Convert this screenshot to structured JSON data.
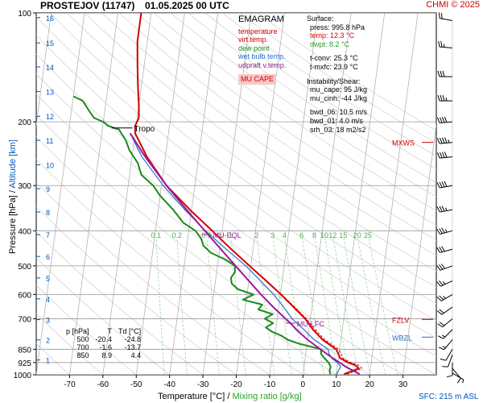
{
  "header": {
    "station": "PROSTEJOV (11747)",
    "datetime": "01.05.2025 00 UTC",
    "credit": "CHMI © 2025"
  },
  "axes": {
    "ylabel_pressure": "Pressure [hPa]",
    "ylabel_sep": " / ",
    "ylabel_altitude": "Altitude [km]",
    "xlabel_temp": "Temperature [°C]",
    "xlabel_sep": " / ",
    "xlabel_mix": "Mixing ratio [g/kg]",
    "sfc_note": "SFC: 215 m ASL"
  },
  "legend": {
    "title": "EMAGRAM",
    "items": [
      {
        "label": "temperature",
        "color": "#d40000"
      },
      {
        "label": "virt.temp.",
        "color": "#d40000"
      },
      {
        "label": "dew point",
        "color": "#1a8a1a"
      },
      {
        "label": "wet bulb temp.",
        "color": "#2b6fc7"
      },
      {
        "label": "udpraft v.temp.",
        "color": "#8b1a8b"
      }
    ],
    "cape_box": "MU CAPE"
  },
  "info": {
    "surface_title": "Surface:",
    "press": "press: 995.8 hPa",
    "temp": "temp: 12.3 °C",
    "dwpt": "dwpt: 8.2 °C",
    "tconv": "t-conv: 25.3 °C",
    "tmxfc": "t-mxfc: 23.9 °C",
    "instab_title": "Instability/Shear:",
    "mu_cape": "mu_cape: 95 J/kg",
    "mu_cinh": "mu_cinh: -44 J/kg",
    "bwd_06": "bwd_06: 10.5 m/s",
    "bwd_01": "bwd_01: 4.0 m/s",
    "srh_03": "srh_03: 18 m2/s2"
  },
  "ptable": {
    "headers": [
      "p [hPa]",
      "T",
      "Td [°C]"
    ],
    "rows": [
      [
        "500",
        "-20.4",
        "-24.8"
      ],
      [
        "700",
        "-1.6",
        "-13.7"
      ],
      [
        "850",
        "8.9",
        "4.4"
      ]
    ]
  },
  "colors": {
    "temperature": "#d40000",
    "dewpoint": "#1a8a1a",
    "wetbulb": "#2b6fc7",
    "parcel": "#9b1a9b",
    "isobar": "#999999",
    "isotherm": "#aaaaaa",
    "mixing": "#9ad89a",
    "altitude": "#0057b8",
    "label_red": "#d00000"
  },
  "chart_data": {
    "type": "line",
    "y_scale": "log",
    "ylim": [
      1000,
      100
    ],
    "xlim": [
      -80,
      40
    ],
    "x_ticks": [
      -70,
      -60,
      -50,
      -40,
      -30,
      -20,
      -10,
      0,
      10,
      20,
      30
    ],
    "y_ticks": [
      100,
      200,
      300,
      400,
      500,
      600,
      700,
      850,
      925,
      1000
    ],
    "altitude_ticks_km": [
      {
        "label": "1",
        "p": 910
      },
      {
        "label": "2",
        "p": 801
      },
      {
        "label": "3",
        "p": 704
      },
      {
        "label": "4",
        "p": 617
      },
      {
        "label": "5",
        "p": 540
      },
      {
        "label": "6",
        "p": 471
      },
      {
        "label": "7",
        "p": 410
      },
      {
        "label": "8",
        "p": 355
      },
      {
        "label": "9",
        "p": 306
      },
      {
        "label": "10",
        "p": 263
      },
      {
        "label": "11",
        "p": 225
      },
      {
        "label": "12",
        "p": 193
      },
      {
        "label": "13",
        "p": 165
      },
      {
        "label": "14",
        "p": 141
      },
      {
        "label": "15",
        "p": 121
      },
      {
        "label": "16",
        "p": 103
      }
    ],
    "mixing_ratio_labels": [
      "0.1",
      "0.2",
      "0.5",
      "1",
      "2",
      "3",
      "4",
      "6",
      "8",
      "10",
      "12",
      "15",
      "20",
      "25"
    ],
    "series": [
      {
        "name": "temperature",
        "key": "temperature",
        "points": [
          [
            996,
            12.3
          ],
          [
            975,
            14.7
          ],
          [
            960,
            16.5
          ],
          [
            940,
            15.2
          ],
          [
            925,
            13.0
          ],
          [
            900,
            10.5
          ],
          [
            875,
            9.8
          ],
          [
            850,
            8.9
          ],
          [
            800,
            4.5
          ],
          [
            750,
            1.2
          ],
          [
            700,
            -1.6
          ],
          [
            650,
            -5.5
          ],
          [
            600,
            -9.8
          ],
          [
            550,
            -14.8
          ],
          [
            500,
            -20.4
          ],
          [
            450,
            -26.5
          ],
          [
            400,
            -33.0
          ],
          [
            350,
            -40.5
          ],
          [
            300,
            -48.5
          ],
          [
            250,
            -55.5
          ],
          [
            215,
            -60.0
          ],
          [
            205,
            -60.3
          ],
          [
            195,
            -59.5
          ],
          [
            180,
            -60.0
          ],
          [
            160,
            -61.0
          ],
          [
            140,
            -62.0
          ],
          [
            120,
            -63.0
          ],
          [
            100,
            -63.0
          ]
        ]
      },
      {
        "name": "virt.temp.",
        "key": "virttemp",
        "points": [
          [
            996,
            13.2
          ],
          [
            975,
            15.7
          ],
          [
            960,
            17.5
          ],
          [
            940,
            16.1
          ],
          [
            925,
            13.9
          ],
          [
            900,
            11.4
          ],
          [
            875,
            10.6
          ],
          [
            850,
            9.7
          ],
          [
            800,
            5.2
          ],
          [
            750,
            1.8
          ],
          [
            700,
            -1.2
          ],
          [
            650,
            -5.2
          ],
          [
            600,
            -9.6
          ],
          [
            550,
            -14.6
          ],
          [
            500,
            -20.3
          ],
          [
            450,
            -26.4
          ],
          [
            400,
            -33.0
          ],
          [
            350,
            -40.5
          ],
          [
            300,
            -48.5
          ],
          [
            250,
            -55.5
          ],
          [
            215,
            -60.0
          ]
        ]
      },
      {
        "name": "dew point",
        "key": "dewpoint",
        "points": [
          [
            996,
            8.2
          ],
          [
            975,
            7.8
          ],
          [
            950,
            8.0
          ],
          [
            925,
            7.2
          ],
          [
            900,
            5.8
          ],
          [
            875,
            4.6
          ],
          [
            850,
            4.4
          ],
          [
            820,
            -2.5
          ],
          [
            800,
            -6.0
          ],
          [
            780,
            -8.0
          ],
          [
            760,
            -11.0
          ],
          [
            740,
            -13.0
          ],
          [
            720,
            -11.0
          ],
          [
            700,
            -13.7
          ],
          [
            680,
            -11.5
          ],
          [
            660,
            -16.0
          ],
          [
            640,
            -15.0
          ],
          [
            620,
            -21.0
          ],
          [
            600,
            -18.0
          ],
          [
            580,
            -23.0
          ],
          [
            560,
            -25.0
          ],
          [
            540,
            -25.5
          ],
          [
            520,
            -24.5
          ],
          [
            500,
            -24.8
          ],
          [
            480,
            -28.0
          ],
          [
            460,
            -32.5
          ],
          [
            440,
            -35.0
          ],
          [
            420,
            -36.0
          ],
          [
            400,
            -38.0
          ],
          [
            380,
            -42.0
          ],
          [
            350,
            -45.5
          ],
          [
            320,
            -50.0
          ],
          [
            300,
            -52.5
          ],
          [
            280,
            -56.5
          ],
          [
            260,
            -58.0
          ],
          [
            240,
            -61.0
          ],
          [
            225,
            -62.5
          ],
          [
            210,
            -65.0
          ],
          [
            205,
            -68.5
          ],
          [
            200,
            -70.0
          ],
          [
            195,
            -73.0
          ],
          [
            185,
            -75.0
          ],
          [
            175,
            -77.0
          ],
          [
            170,
            -80.0
          ]
        ]
      },
      {
        "name": "wet bulb temp.",
        "key": "wetbulb",
        "points": [
          [
            996,
            10.0
          ],
          [
            975,
            10.5
          ],
          [
            950,
            11.0
          ],
          [
            925,
            9.8
          ],
          [
            900,
            8.0
          ],
          [
            875,
            7.0
          ],
          [
            850,
            6.5
          ],
          [
            800,
            2.0
          ],
          [
            750,
            -1.5
          ],
          [
            700,
            -5.5
          ],
          [
            650,
            -8.5
          ],
          [
            600,
            -12.0
          ],
          [
            550,
            -16.5
          ],
          [
            500,
            -21.5
          ],
          [
            450,
            -28.0
          ],
          [
            400,
            -35.0
          ],
          [
            350,
            -42.0
          ],
          [
            300,
            -49.5
          ],
          [
            250,
            -57.0
          ],
          [
            215,
            -61.5
          ]
        ]
      },
      {
        "name": "udpraft v.temp.",
        "key": "parcel",
        "points": [
          [
            996,
            17.0
          ],
          [
            975,
            15.0
          ],
          [
            950,
            12.5
          ],
          [
            925,
            10.5
          ],
          [
            900,
            8.3
          ],
          [
            850,
            4.2
          ],
          [
            800,
            0.0
          ],
          [
            750,
            -3.8
          ],
          [
            720,
            -5.8
          ],
          [
            700,
            -7.5
          ],
          [
            650,
            -11.6
          ],
          [
            600,
            -15.8
          ],
          [
            550,
            -20.0
          ],
          [
            500,
            -24.6
          ],
          [
            450,
            -29.6
          ],
          [
            400,
            -35.2
          ],
          [
            350,
            -41.5
          ],
          [
            300,
            -48.5
          ],
          [
            250,
            -56.0
          ],
          [
            215,
            -61.5
          ]
        ]
      }
    ],
    "annotations": [
      {
        "text": "Tropo",
        "p": 208,
        "t": -62.0,
        "kind": "tropo"
      },
      {
        "text": "MU-EQL",
        "p": 410,
        "t": -34.5,
        "kind": "parcel"
      },
      {
        "text": "MU-LFC",
        "p": 720,
        "t": -5.8,
        "kind": "parcel"
      },
      {
        "text": "FZLV",
        "p": 703,
        "kind": "right"
      },
      {
        "text": "WBZL",
        "p": 787,
        "kind": "right_blue"
      },
      {
        "text": "MXWS",
        "p": 228,
        "kind": "right"
      }
    ],
    "wind_profile": [
      {
        "p": 990,
        "dir": 120,
        "spd": 5
      },
      {
        "p": 960,
        "dir": 140,
        "spd": 10
      },
      {
        "p": 925,
        "dir": 180,
        "spd": 10
      },
      {
        "p": 880,
        "dir": 200,
        "spd": 10
      },
      {
        "p": 850,
        "dir": 210,
        "spd": 10
      },
      {
        "p": 800,
        "dir": 220,
        "spd": 15
      },
      {
        "p": 750,
        "dir": 225,
        "spd": 15
      },
      {
        "p": 700,
        "dir": 230,
        "spd": 20
      },
      {
        "p": 650,
        "dir": 235,
        "spd": 20
      },
      {
        "p": 600,
        "dir": 240,
        "spd": 25
      },
      {
        "p": 550,
        "dir": 245,
        "spd": 25
      },
      {
        "p": 500,
        "dir": 250,
        "spd": 30
      },
      {
        "p": 450,
        "dir": 255,
        "spd": 30
      },
      {
        "p": 400,
        "dir": 255,
        "spd": 35
      },
      {
        "p": 350,
        "dir": 260,
        "spd": 35
      },
      {
        "p": 300,
        "dir": 260,
        "spd": 40
      },
      {
        "p": 250,
        "dir": 265,
        "spd": 40
      },
      {
        "p": 228,
        "dir": 265,
        "spd": 45
      },
      {
        "p": 200,
        "dir": 265,
        "spd": 40
      },
      {
        "p": 175,
        "dir": 270,
        "spd": 35
      },
      {
        "p": 150,
        "dir": 270,
        "spd": 30
      },
      {
        "p": 125,
        "dir": 275,
        "spd": 25
      },
      {
        "p": 105,
        "dir": 280,
        "spd": 20
      }
    ]
  }
}
